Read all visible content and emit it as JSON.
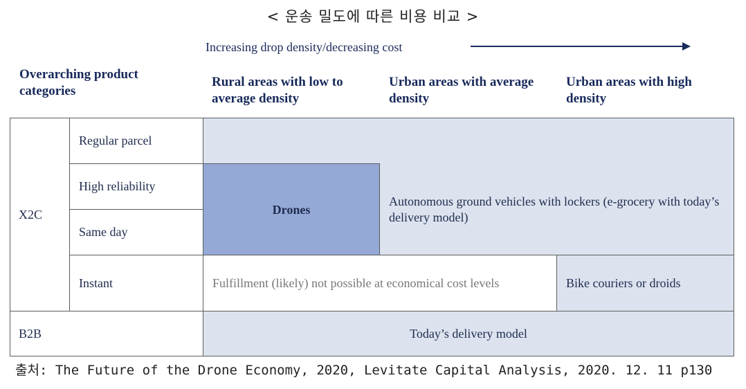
{
  "title": "< 운송 밀도에 따른 비용 비교 >",
  "subtitle": "Increasing drop density/decreasing cost",
  "headers": {
    "categories": "Overarching product categories",
    "rural": "Rural areas with low to average density",
    "urban_avg": "Urban areas with average density",
    "urban_high": "Urban areas with high density"
  },
  "rows": {
    "x2c": "X2C",
    "b2b": "B2B",
    "regular": "Regular parcel",
    "high_rel": "High reliability",
    "same_day": "Same day",
    "instant": "Instant"
  },
  "cells": {
    "drones": "Drones",
    "agv": "Autonomous ground vehicles with lockers (e-grocery with today’s delivery model)",
    "not_possible": "Fulfillment (likely) not possible at economical cost levels",
    "bike": "Bike couriers or droids",
    "today": "Today’s delivery model"
  },
  "source": "출처: The Future of the Drone Economy, 2020, Levitate Capital Analysis, 2020. 12. 11 p130",
  "colors": {
    "light": "#dce3ef",
    "dark": "#95a9d7",
    "text": "#1e2b4d"
  }
}
